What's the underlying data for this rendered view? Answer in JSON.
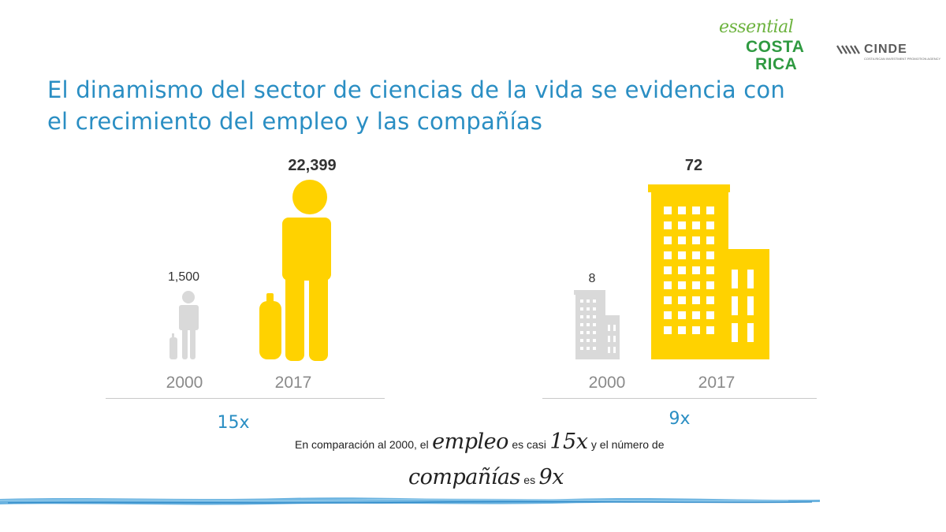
{
  "title": "El dinamismo del sector de ciencias de la vida se evidencia con el crecimiento del empleo y las compañías",
  "logos": {
    "essential_script": "essential",
    "essential_l1": "COSTA",
    "essential_l2": "RICA",
    "cinde_name": "CINDE",
    "cinde_tag": "COSTA RICAN INVESTMENT PROMOTION AGENCY"
  },
  "colors": {
    "highlight": "#FFD200",
    "muted": "#D9D9D9",
    "title": "#2A8EC3",
    "logo_green": "#2F9A41"
  },
  "chart_data": [
    {
      "type": "bar",
      "icon": "person-with-luggage",
      "categories": [
        "2000",
        "2017"
      ],
      "values": [
        1500,
        22399
      ],
      "value_labels": [
        "1,500",
        "22,399"
      ],
      "multiplier": "15x"
    },
    {
      "type": "bar",
      "icon": "building",
      "categories": [
        "2000",
        "2017"
      ],
      "values": [
        8,
        72
      ],
      "value_labels": [
        "8",
        "72"
      ],
      "multiplier": "9x"
    }
  ],
  "caption": {
    "p1": "En comparación al 2000, el",
    "h1": "empleo",
    "p2": "es casi",
    "h2": "15x",
    "p3": "y el número de",
    "h3": "compañías",
    "p4": "es",
    "h4": "9x"
  }
}
